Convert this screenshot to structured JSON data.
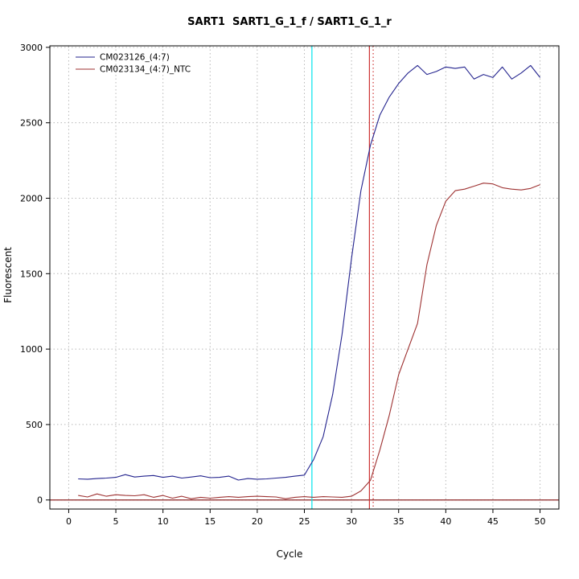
{
  "page_title": "SART1  SART1_G_1_f / SART1_G_1_r",
  "chart_data": {
    "type": "line",
    "title": "SART1  SART1_G_1_f / SART1_G_1_r",
    "xlabel": "Cycle",
    "ylabel": "Fluorescent",
    "xlim": [
      -2,
      52
    ],
    "ylim": [
      -60,
      3010
    ],
    "xticks": [
      0,
      5,
      10,
      15,
      20,
      25,
      30,
      35,
      40,
      45,
      50
    ],
    "yticks": [
      0,
      500,
      1000,
      1500,
      2000,
      2500,
      3000
    ],
    "grid": true,
    "grid_color": "#b8b8b8",
    "legend_position": "top-left",
    "x": [
      1,
      2,
      3,
      4,
      5,
      6,
      7,
      8,
      9,
      10,
      11,
      12,
      13,
      14,
      15,
      16,
      17,
      18,
      19,
      20,
      21,
      22,
      23,
      24,
      25,
      26,
      27,
      28,
      29,
      30,
      31,
      32,
      33,
      34,
      35,
      36,
      37,
      38,
      39,
      40,
      41,
      42,
      43,
      44,
      45,
      46,
      47,
      48,
      49,
      50
    ],
    "series": [
      {
        "name": "CM023126_(4:7)",
        "color": "#23238e",
        "values": [
          140,
          138,
          142,
          145,
          150,
          168,
          152,
          158,
          162,
          150,
          158,
          145,
          152,
          160,
          148,
          150,
          158,
          132,
          142,
          138,
          140,
          145,
          150,
          158,
          165,
          270,
          420,
          700,
          1100,
          1600,
          2050,
          2350,
          2550,
          2670,
          2760,
          2830,
          2880,
          2820,
          2840,
          2870,
          2860,
          2870,
          2790,
          2820,
          2800,
          2870,
          2790,
          2830,
          2880,
          2800
        ]
      },
      {
        "name": "CM023134_(4:7)_NTC",
        "color": "#9e3232",
        "values": [
          30,
          20,
          40,
          25,
          35,
          30,
          28,
          35,
          18,
          30,
          12,
          25,
          8,
          18,
          12,
          18,
          22,
          18,
          22,
          25,
          22,
          20,
          8,
          18,
          22,
          18,
          22,
          20,
          18,
          25,
          60,
          130,
          330,
          560,
          830,
          1000,
          1170,
          1560,
          1820,
          1980,
          2050,
          2060,
          2080,
          2100,
          2095,
          2070,
          2060,
          2055,
          2065,
          2090
        ]
      }
    ],
    "vlines": [
      {
        "x": 25.8,
        "color": "#00e5ee",
        "style": "solid"
      },
      {
        "x": 31.9,
        "color": "#cd3333",
        "style": "solid"
      },
      {
        "x": 32.3,
        "color": "#cd3333",
        "style": "dotted"
      }
    ],
    "hlines": [
      {
        "y": 0,
        "color": "#8b2323",
        "style": "solid"
      }
    ]
  }
}
